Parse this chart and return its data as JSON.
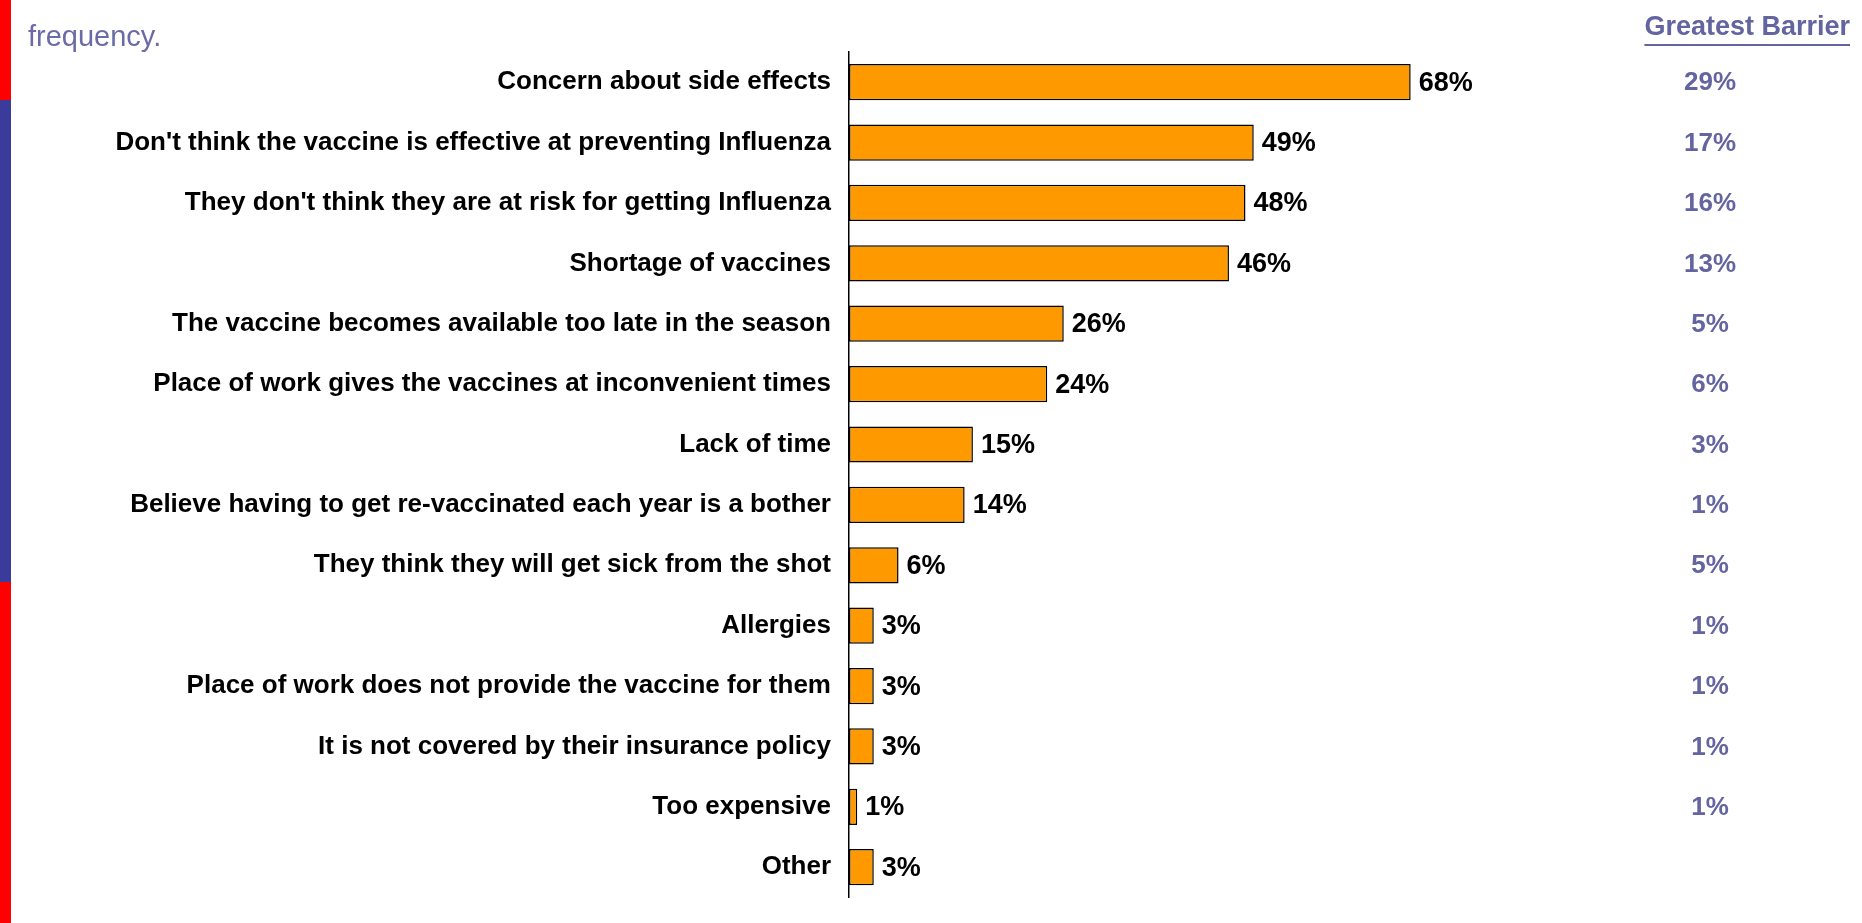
{
  "chart_data": {
    "type": "bar",
    "orientation": "horizontal",
    "subtitle": "frequency.",
    "categories": [
      "Concern about side effects",
      "Don't think the vaccine is effective at preventing Influenza",
      "They don't think they are at risk for getting Influenza",
      "Shortage of vaccines",
      "The vaccine becomes available too late in the season",
      "Place of work gives the vaccines at inconvenient times",
      "Lack of time",
      "Believe having to get re-vaccinated each year is a bother",
      "They think they will get sick from the shot",
      "Allergies",
      "Place of work does not provide the vaccine for them",
      "It is not covered by their insurance policy",
      "Too expensive",
      "Other"
    ],
    "values": [
      68,
      49,
      48,
      46,
      26,
      24,
      15,
      14,
      6,
      3,
      3,
      3,
      1,
      3
    ],
    "value_labels": [
      "68%",
      "49%",
      "48%",
      "46%",
      "26%",
      "24%",
      "15%",
      "14%",
      "6%",
      "3%",
      "3%",
      "3%",
      "1%",
      "3%"
    ],
    "color": "#ff9900",
    "legend": false,
    "grid": false,
    "annotations": [
      "Greatest Barrier",
      "29%",
      "17%",
      "16%",
      "13%",
      "5%",
      "6%",
      "3%",
      "1%",
      "5%",
      "1%",
      "1%",
      "1%",
      "1%"
    ]
  }
}
